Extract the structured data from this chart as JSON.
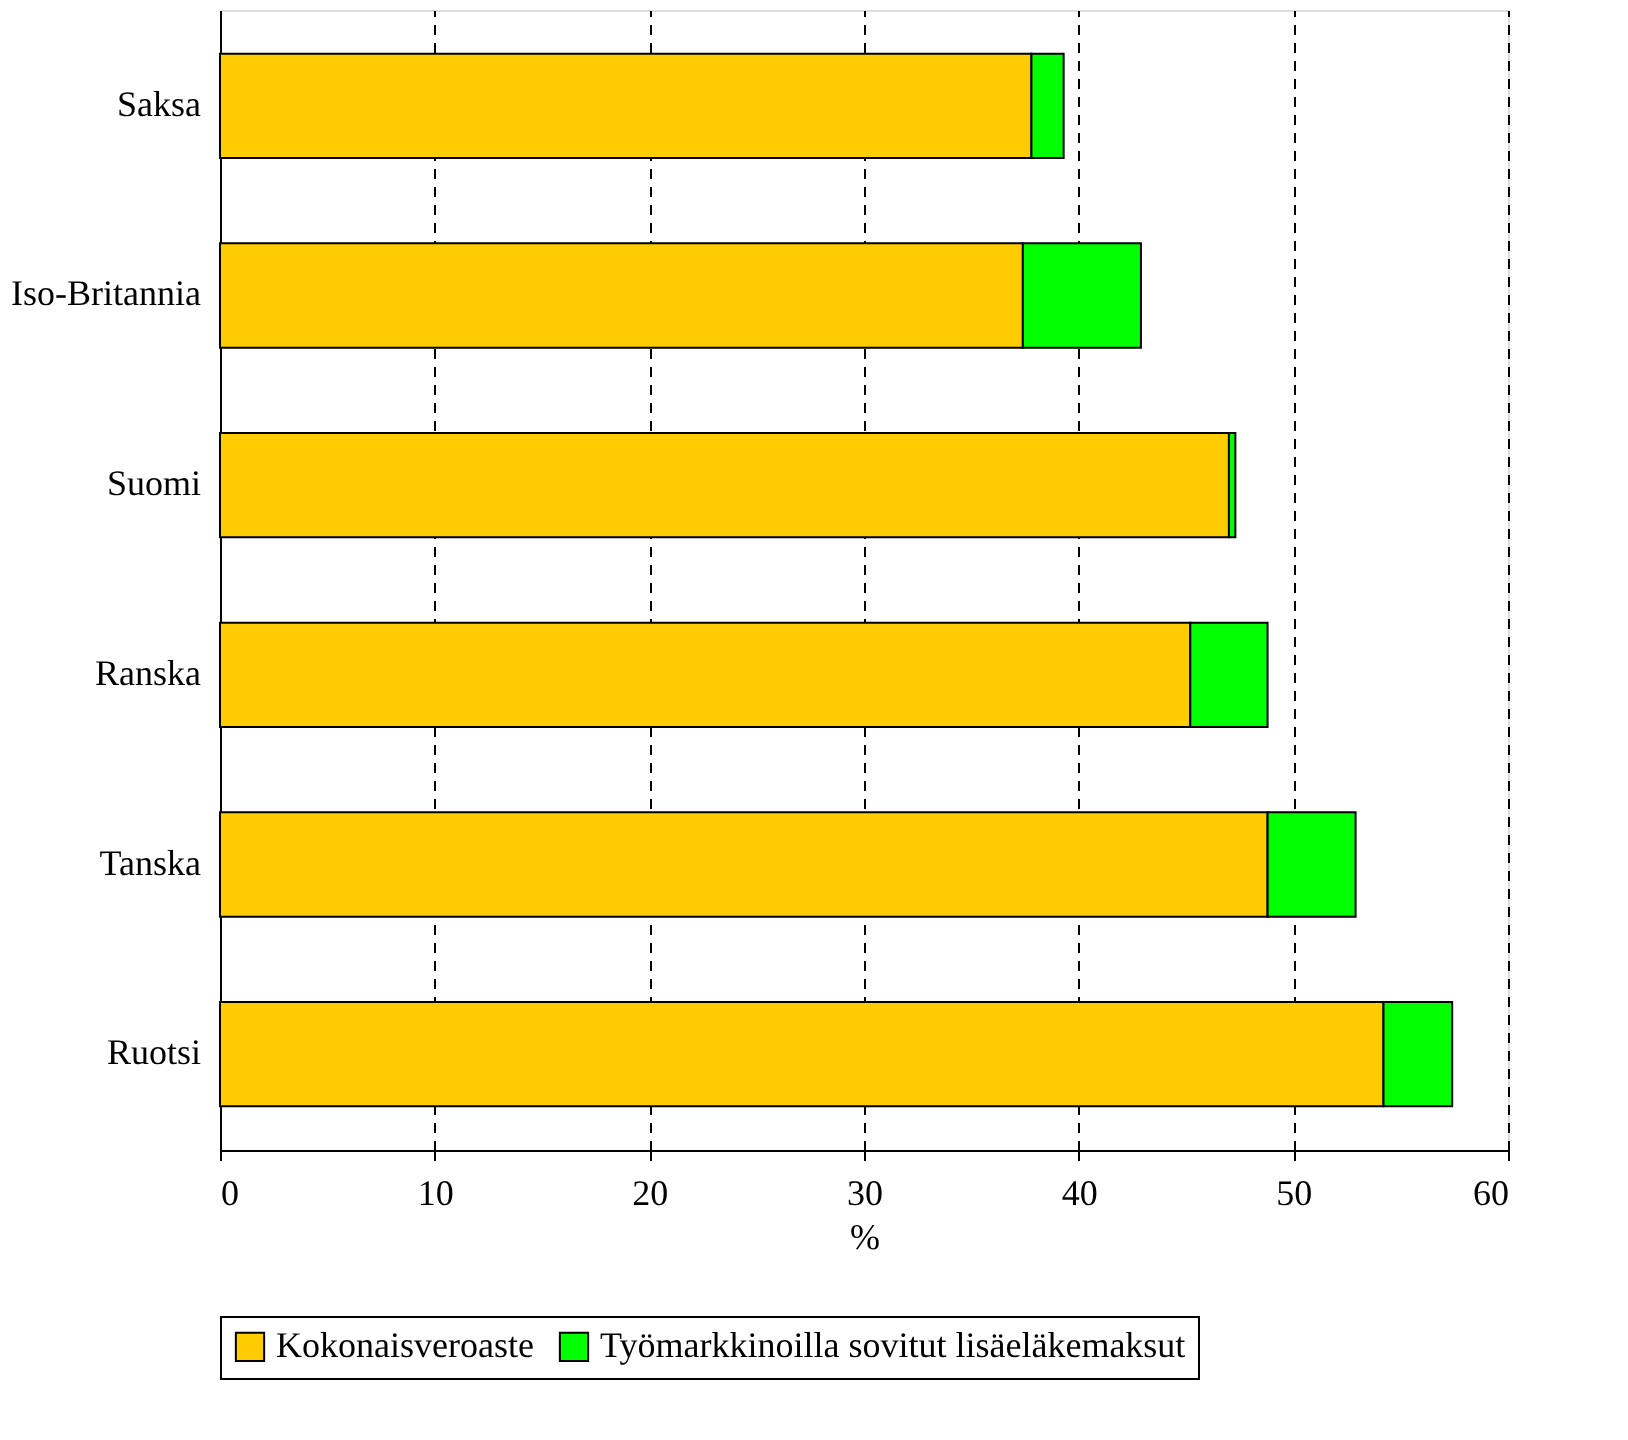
{
  "chart_data": {
    "type": "bar",
    "orientation": "horizontal",
    "stacked": true,
    "xlabel": "%",
    "categories": [
      "Saksa",
      "Iso-Britannia",
      "Suomi",
      "Ranska",
      "Tanska",
      "Ruotsi"
    ],
    "series": [
      {
        "name": "Kokonaisveroaste",
        "color": "#ffcc00",
        "values": [
          37.8,
          37.4,
          47.0,
          45.2,
          48.8,
          54.2
        ]
      },
      {
        "name": "Työmarkkinoilla sovitut lisäeläkemaksut",
        "color": "#00ff00",
        "values": [
          1.5,
          5.5,
          0.3,
          3.6,
          4.1,
          3.2
        ]
      }
    ],
    "xlim": [
      0,
      60
    ],
    "xticks": [
      0,
      10,
      20,
      30,
      40,
      50,
      60
    ],
    "grid": "x",
    "legend": "bottom"
  }
}
